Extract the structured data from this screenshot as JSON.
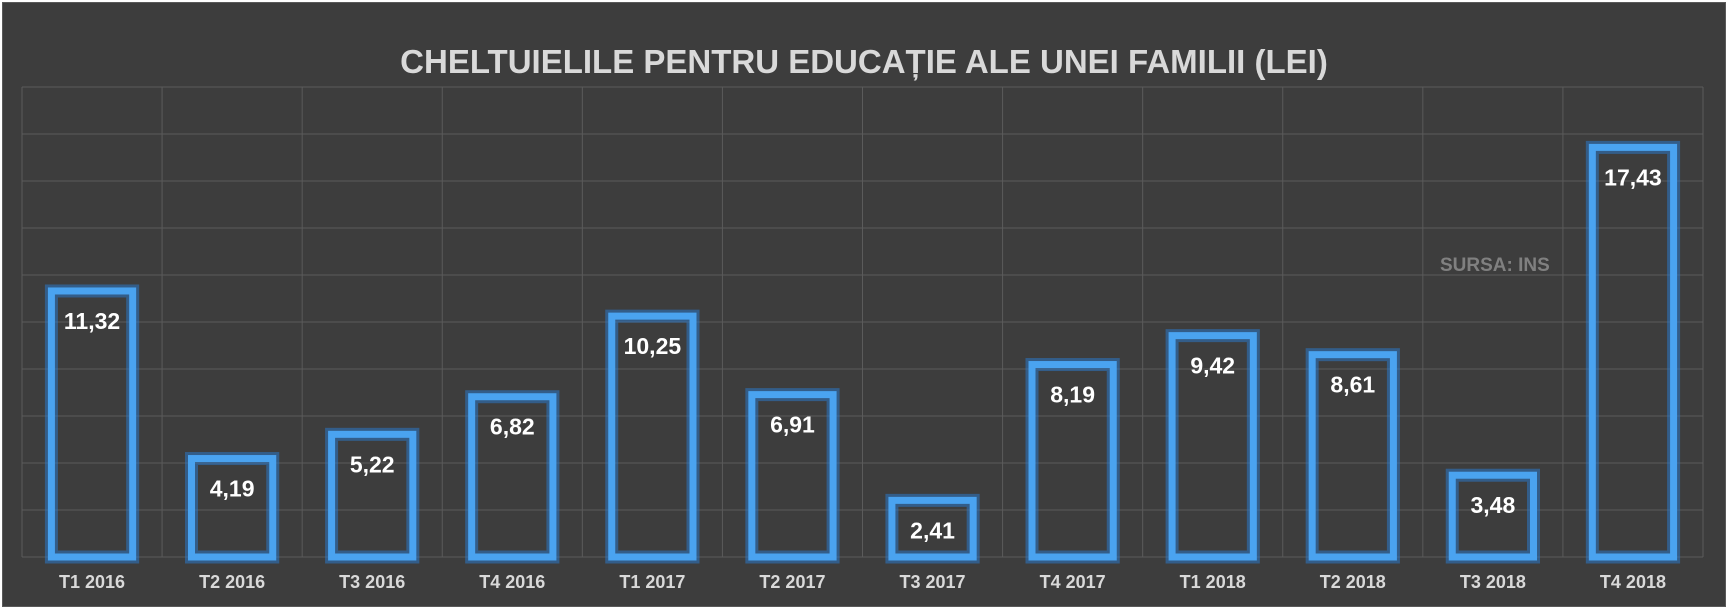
{
  "chart_data": {
    "type": "bar",
    "title": "CHELTUIELILE PENTRU EDUCAȚIE ALE UNEI FAMILII (LEI)",
    "source": "SURSA: INS",
    "categories": [
      "T1 2016",
      "T2 2016",
      "T3 2016",
      "T4 2016",
      "T1 2017",
      "T2 2017",
      "T3 2017",
      "T4 2017",
      "T1 2018",
      "T2 2018",
      "T3 2018",
      "T4 2018"
    ],
    "values": [
      11.32,
      4.19,
      5.22,
      6.82,
      10.25,
      6.91,
      2.41,
      8.19,
      9.42,
      8.61,
      3.48,
      17.43
    ],
    "value_labels": [
      "11,32",
      "4,19",
      "5,22",
      "6,82",
      "10,25",
      "6,91",
      "2,41",
      "8,19",
      "9,42",
      "8,61",
      "3,48",
      "17,43"
    ],
    "xlabel": "",
    "ylabel": "",
    "ylim": [
      0,
      20
    ],
    "grid": true,
    "bar_color": "#4aa3f0",
    "background_color": "#3d3d3d"
  }
}
